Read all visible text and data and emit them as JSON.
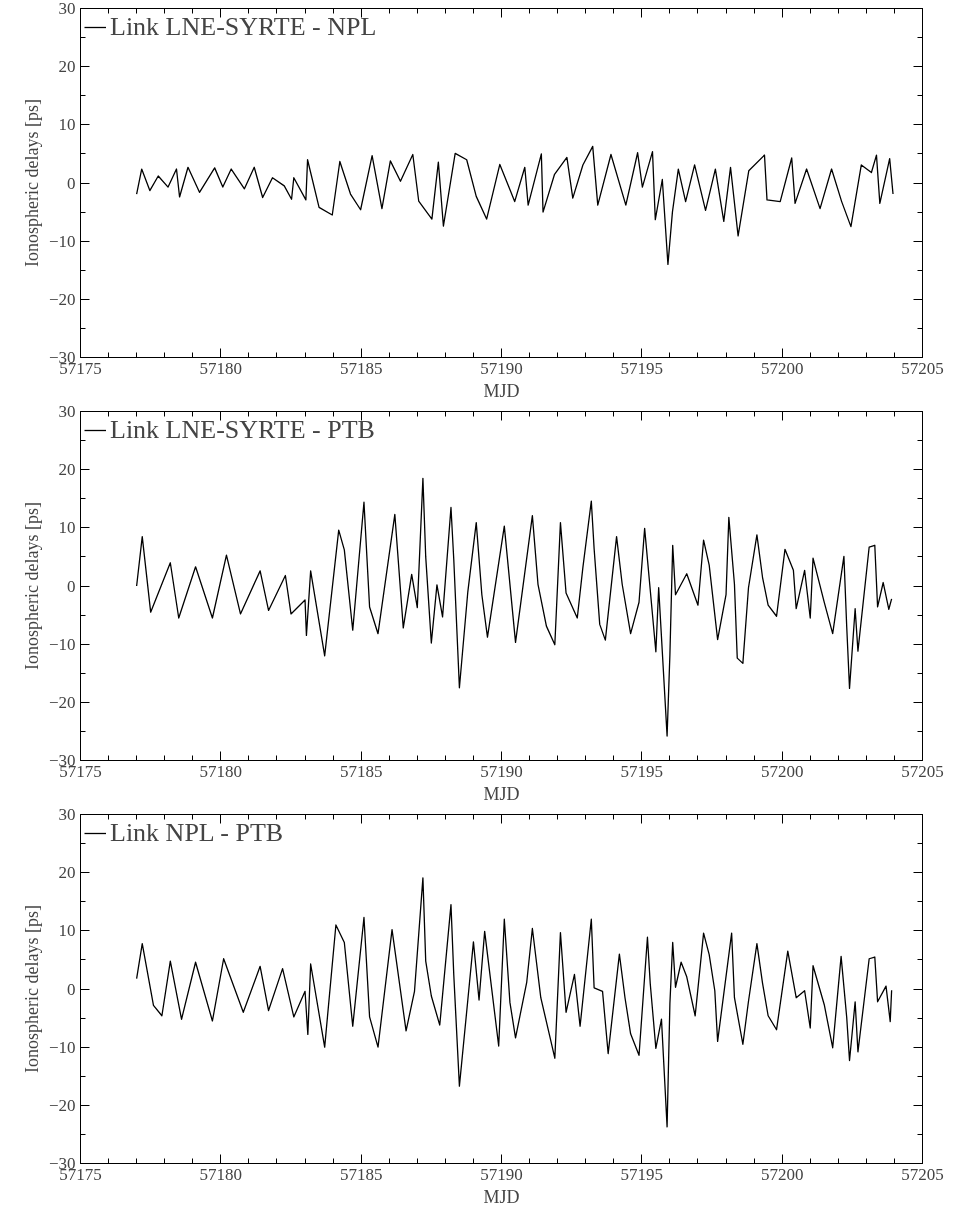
{
  "chart_data": [
    {
      "type": "line",
      "xlabel": "MJD",
      "ylabel": "Ionospheric delays [ps]",
      "legend": "top left",
      "line_style": "solid",
      "marker": "none",
      "xlim": [
        57175,
        57205
      ],
      "ylim": [
        -30,
        30
      ],
      "xticks": [
        57175,
        {
          "value": 57176,
          "label": null
        },
        {
          "value": 57177,
          "label": null
        },
        {
          "value": 57178,
          "label": null
        },
        {
          "value": 57179,
          "label": null
        },
        57180,
        {
          "value": 57181,
          "label": null
        },
        {
          "value": 57182,
          "label": null
        },
        {
          "value": 57183,
          "label": null
        },
        {
          "value": 57184,
          "label": null
        },
        57185,
        {
          "value": 57186,
          "label": null
        },
        {
          "value": 57187,
          "label": null
        },
        {
          "value": 57188,
          "label": null
        },
        {
          "value": 57189,
          "label": null
        },
        57190,
        {
          "value": 57191,
          "label": null
        },
        {
          "value": 57192,
          "label": null
        },
        {
          "value": 57193,
          "label": null
        },
        {
          "value": 57194,
          "label": null
        },
        57195,
        {
          "value": 57196,
          "label": null
        },
        {
          "value": 57197,
          "label": null
        },
        {
          "value": 57198,
          "label": null
        },
        {
          "value": 57199,
          "label": null
        },
        57200,
        {
          "value": 57201,
          "label": null
        },
        {
          "value": 57202,
          "label": null
        },
        {
          "value": 57203,
          "label": null
        },
        {
          "value": 57204,
          "label": null
        },
        57205
      ],
      "yticks": [
        {
          "value": -30,
          "label": "−30"
        },
        {
          "value": -25,
          "label": null
        },
        {
          "value": -20,
          "label": "−20"
        },
        {
          "value": -15,
          "label": null
        },
        {
          "value": -10,
          "label": "−10"
        },
        {
          "value": -5,
          "label": null
        },
        0,
        {
          "value": 5,
          "label": null
        },
        10,
        {
          "value": 15,
          "label": null
        },
        20,
        {
          "value": 25,
          "label": null
        },
        30
      ],
      "series": [
        {
          "name": "Link LNE-SYRTE - NPL",
          "color": "#000000",
          "x": [
            57177.0,
            57177.18,
            57177.47,
            57177.77,
            57178.12,
            57178.42,
            57178.53,
            57178.83,
            57179.24,
            57179.78,
            57180.07,
            57180.37,
            57180.84,
            57181.19,
            57181.49,
            57181.84,
            57182.26,
            57182.52,
            57182.6,
            57183.03,
            57183.09,
            57183.5,
            57183.97,
            57184.24,
            57184.62,
            57184.98,
            57185.39,
            57185.74,
            57186.04,
            57186.4,
            57186.84,
            57187.05,
            57187.52,
            57187.75,
            57187.93,
            57188.35,
            57188.76,
            57189.1,
            57189.47,
            57189.94,
            57190.47,
            57190.83,
            57190.95,
            57191.42,
            57191.48,
            57191.89,
            57192.33,
            57192.54,
            57192.9,
            57193.25,
            57193.43,
            57193.9,
            57194.43,
            57194.85,
            57195.02,
            57195.38,
            57195.48,
            57195.73,
            57195.93,
            57196.09,
            57196.3,
            57196.56,
            57196.88,
            57197.27,
            57197.62,
            57197.92,
            57198.16,
            57198.43,
            57198.81,
            57199.37,
            57199.46,
            57199.93,
            57200.34,
            57200.46,
            57200.87,
            57201.35,
            57201.76,
            57202.12,
            57202.45,
            57202.82,
            57203.18,
            57203.36,
            57203.48,
            57203.83,
            57203.95
          ],
          "values": [
            -1.9,
            2.4,
            -1.3,
            1.2,
            -0.7,
            2.4,
            -2.4,
            2.7,
            -1.6,
            2.6,
            -0.7,
            2.4,
            -1.0,
            2.7,
            -2.5,
            0.9,
            -0.5,
            -2.8,
            0.9,
            -2.9,
            4.0,
            -4.2,
            -5.5,
            3.7,
            -1.9,
            -4.6,
            4.7,
            -4.4,
            3.8,
            0.3,
            4.9,
            -3.1,
            -6.2,
            3.6,
            -7.4,
            5.1,
            4.0,
            -2.3,
            -6.2,
            3.2,
            -3.2,
            2.7,
            -3.8,
            5.0,
            -5.0,
            1.5,
            4.4,
            -2.6,
            3.1,
            6.3,
            -3.8,
            4.9,
            -3.8,
            5.2,
            -0.7,
            5.4,
            -6.3,
            0.6,
            -14.0,
            -5.0,
            2.4,
            -3.2,
            3.1,
            -4.7,
            2.4,
            -6.6,
            2.7,
            -9.1,
            2.1,
            4.8,
            -2.9,
            -3.2,
            4.3,
            -3.5,
            2.4,
            -4.4,
            2.4,
            -3.2,
            -7.5,
            3.1,
            1.8,
            4.8,
            -3.5,
            4.2,
            -1.9
          ]
        }
      ]
    },
    {
      "type": "line",
      "xlabel": "MJD",
      "ylabel": "Ionospheric delays [ps]",
      "legend": "top left",
      "line_style": "solid",
      "marker": "none",
      "xlim": [
        57175,
        57205
      ],
      "ylim": [
        -30,
        30
      ],
      "xticks": [
        57175,
        {
          "value": 57176,
          "label": null
        },
        {
          "value": 57177,
          "label": null
        },
        {
          "value": 57178,
          "label": null
        },
        {
          "value": 57179,
          "label": null
        },
        57180,
        {
          "value": 57181,
          "label": null
        },
        {
          "value": 57182,
          "label": null
        },
        {
          "value": 57183,
          "label": null
        },
        {
          "value": 57184,
          "label": null
        },
        57185,
        {
          "value": 57186,
          "label": null
        },
        {
          "value": 57187,
          "label": null
        },
        {
          "value": 57188,
          "label": null
        },
        {
          "value": 57189,
          "label": null
        },
        57190,
        {
          "value": 57191,
          "label": null
        },
        {
          "value": 57192,
          "label": null
        },
        {
          "value": 57193,
          "label": null
        },
        {
          "value": 57194,
          "label": null
        },
        57195,
        {
          "value": 57196,
          "label": null
        },
        {
          "value": 57197,
          "label": null
        },
        {
          "value": 57198,
          "label": null
        },
        {
          "value": 57199,
          "label": null
        },
        57200,
        {
          "value": 57201,
          "label": null
        },
        {
          "value": 57202,
          "label": null
        },
        {
          "value": 57203,
          "label": null
        },
        {
          "value": 57204,
          "label": null
        },
        57205
      ],
      "yticks": [
        {
          "value": -30,
          "label": "−30"
        },
        {
          "value": -25,
          "label": null
        },
        {
          "value": -20,
          "label": "−20"
        },
        {
          "value": -15,
          "label": null
        },
        {
          "value": -10,
          "label": "−10"
        },
        {
          "value": -5,
          "label": null
        },
        0,
        {
          "value": 5,
          "label": null
        },
        10,
        {
          "value": 15,
          "label": null
        },
        20,
        {
          "value": 25,
          "label": null
        },
        30
      ],
      "series": [
        {
          "name": "Link LNE-SYRTE - PTB",
          "color": "#000000",
          "x": [
            57177.0,
            57177.2,
            57177.5,
            57178.2,
            57178.5,
            57179.1,
            57179.7,
            57180.2,
            57180.7,
            57181.4,
            57181.7,
            57182.3,
            57182.5,
            57183.0,
            57183.05,
            57183.2,
            57183.7,
            57184.2,
            57184.4,
            57184.7,
            57185.1,
            57185.3,
            57185.6,
            57186.2,
            57186.5,
            57186.8,
            57187.0,
            57187.2,
            57187.3,
            57187.5,
            57187.7,
            57187.9,
            57188.2,
            57188.3,
            57188.5,
            57188.8,
            57189.1,
            57189.3,
            57189.5,
            57190.1,
            57190.5,
            57191.1,
            57191.3,
            57191.6,
            57191.9,
            57192.1,
            57192.3,
            57192.7,
            57192.9,
            57193.2,
            57193.3,
            57193.5,
            57193.7,
            57194.1,
            57194.3,
            57194.6,
            57194.9,
            57195.1,
            57195.5,
            57195.6,
            57195.9,
            57196.0,
            57196.1,
            57196.2,
            57196.6,
            57197.0,
            57197.2,
            57197.4,
            57197.7,
            57198.0,
            57198.1,
            57198.3,
            57198.4,
            57198.6,
            57198.8,
            57199.1,
            57199.3,
            57199.5,
            57199.8,
            57200.1,
            57200.4,
            57200.5,
            57200.8,
            57201.0,
            57201.1,
            57201.5,
            57201.8,
            57202.2,
            57202.3,
            57202.4,
            57202.6,
            57202.7,
            57203.1,
            57203.3,
            57203.4,
            57203.6,
            57203.8,
            57203.9
          ],
          "values": [
            0,
            8.5,
            -4.5,
            4,
            -5.5,
            3.3,
            -5.5,
            5.3,
            -4.8,
            2.6,
            -4.2,
            1.8,
            -4.8,
            -2.4,
            -8.5,
            2.6,
            -12,
            9.6,
            6.2,
            -7.6,
            14.4,
            -3.6,
            -8.2,
            12.3,
            -7.2,
            2,
            -3.7,
            18.5,
            5,
            -9.8,
            0.2,
            -5.3,
            13.5,
            4.5,
            -17.5,
            -1,
            10.9,
            -1.5,
            -8.8,
            10.3,
            -9.7,
            12.1,
            0.3,
            -6.9,
            -10.1,
            10.9,
            -1.2,
            -5.5,
            3.2,
            14.6,
            6.4,
            -6.6,
            -9.3,
            8.5,
            0.3,
            -8.2,
            -2.8,
            9.9,
            -11.3,
            -0.3,
            -25.8,
            -11.8,
            7,
            -1.5,
            2.1,
            -3.3,
            7.9,
            3.6,
            -9.2,
            -1.5,
            11.8,
            0.3,
            -12.4,
            -13.3,
            -0.3,
            8.8,
            1.5,
            -3.3,
            -5.2,
            6.3,
            2.7,
            -3.9,
            2.7,
            -5.5,
            4.8,
            -2.8,
            -8.2,
            5.1,
            -7,
            -17.6,
            -3.9,
            -11.2,
            6.7,
            7,
            -3.6,
            0.6,
            -4,
            -2.2
          ]
        }
      ]
    },
    {
      "type": "line",
      "xlabel": "MJD",
      "ylabel": "Ionospheric delays [ps]",
      "legend": "top left",
      "line_style": "solid",
      "marker": "none",
      "xlim": [
        57175,
        57205
      ],
      "ylim": [
        -30,
        30
      ],
      "xticks": [
        57175,
        {
          "value": 57176,
          "label": null
        },
        {
          "value": 57177,
          "label": null
        },
        {
          "value": 57178,
          "label": null
        },
        {
          "value": 57179,
          "label": null
        },
        57180,
        {
          "value": 57181,
          "label": null
        },
        {
          "value": 57182,
          "label": null
        },
        {
          "value": 57183,
          "label": null
        },
        {
          "value": 57184,
          "label": null
        },
        57185,
        {
          "value": 57186,
          "label": null
        },
        {
          "value": 57187,
          "label": null
        },
        {
          "value": 57188,
          "label": null
        },
        {
          "value": 57189,
          "label": null
        },
        57190,
        {
          "value": 57191,
          "label": null
        },
        {
          "value": 57192,
          "label": null
        },
        {
          "value": 57193,
          "label": null
        },
        {
          "value": 57194,
          "label": null
        },
        57195,
        {
          "value": 57196,
          "label": null
        },
        {
          "value": 57197,
          "label": null
        },
        {
          "value": 57198,
          "label": null
        },
        {
          "value": 57199,
          "label": null
        },
        57200,
        {
          "value": 57201,
          "label": null
        },
        {
          "value": 57202,
          "label": null
        },
        {
          "value": 57203,
          "label": null
        },
        {
          "value": 57204,
          "label": null
        },
        57205
      ],
      "yticks": [
        {
          "value": -30,
          "label": "−30"
        },
        {
          "value": -25,
          "label": null
        },
        {
          "value": -20,
          "label": "−20"
        },
        {
          "value": -15,
          "label": null
        },
        {
          "value": -10,
          "label": "−10"
        },
        {
          "value": -5,
          "label": null
        },
        0,
        {
          "value": 5,
          "label": null
        },
        10,
        {
          "value": 15,
          "label": null
        },
        20,
        {
          "value": 25,
          "label": null
        },
        30
      ],
      "series": [
        {
          "name": "Link NPL - PTB",
          "color": "#000000",
          "x": [
            57177.0,
            57177.2,
            57177.6,
            57177.9,
            57178.2,
            57178.6,
            57179.1,
            57179.7,
            57180.1,
            57180.8,
            57181.4,
            57181.7,
            57182.2,
            57182.6,
            57183.0,
            57183.1,
            57183.2,
            57183.7,
            57184.1,
            57184.4,
            57184.7,
            57185.1,
            57185.3,
            57185.6,
            57186.1,
            57186.6,
            57186.9,
            57187.2,
            57187.3,
            57187.5,
            57187.8,
            57188.2,
            57188.3,
            57188.5,
            57188.8,
            57189.0,
            57189.2,
            57189.4,
            57189.9,
            57190.1,
            57190.3,
            57190.5,
            57190.9,
            57191.1,
            57191.4,
            57191.7,
            57191.9,
            57192.1,
            57192.3,
            57192.6,
            57192.8,
            57193.2,
            57193.3,
            57193.6,
            57193.8,
            57194.2,
            57194.4,
            57194.6,
            57194.9,
            57195.2,
            57195.3,
            57195.5,
            57195.7,
            57195.9,
            57196.0,
            57196.1,
            57196.2,
            57196.4,
            57196.6,
            57196.9,
            57197.2,
            57197.4,
            57197.6,
            57197.7,
            57198.2,
            57198.3,
            57198.6,
            57198.8,
            57199.1,
            57199.3,
            57199.5,
            57199.8,
            57200.2,
            57200.5,
            57200.8,
            57201.0,
            57201.1,
            57201.5,
            57201.8,
            57202.1,
            57202.3,
            57202.4,
            57202.6,
            57202.7,
            57203.1,
            57203.3,
            57203.4,
            57203.7,
            57203.85,
            57203.9
          ],
          "values": [
            1.8,
            7.8,
            -2.8,
            -4.6,
            4.8,
            -5.2,
            4.6,
            -5.5,
            5.2,
            -4,
            3.9,
            -3.7,
            3.5,
            -4.8,
            -0.4,
            -7.8,
            4.3,
            -10,
            11,
            8,
            -6.4,
            12.3,
            -4.8,
            -10,
            10.2,
            -7.2,
            -0.4,
            19.1,
            4.8,
            -1.2,
            -6.2,
            14.5,
            2.4,
            -16.7,
            -1.9,
            8.1,
            -1.9,
            9.9,
            -9.8,
            12,
            -2.3,
            -8.4,
            1.2,
            10.4,
            -1.5,
            -7.7,
            -11.9,
            9.7,
            -4,
            2.5,
            -6.4,
            12,
            0.2,
            -0.4,
            -11.1,
            6,
            -1.5,
            -7.7,
            -11.4,
            8.9,
            0.9,
            -10.2,
            -5.2,
            -23.7,
            -2.5,
            8,
            0.3,
            4.6,
            2.1,
            -4.6,
            9.6,
            5.9,
            -0.3,
            -9,
            9.6,
            -1.5,
            -9.5,
            -2.1,
            7.8,
            1,
            -4.6,
            -7,
            6.5,
            -1.5,
            -0.3,
            -6.7,
            4,
            -2.7,
            -10.1,
            5.6,
            -4.9,
            -12.3,
            -2.2,
            -10.8,
            5.2,
            5.5,
            -2.2,
            0.5,
            -5.6,
            -0.2
          ]
        }
      ]
    }
  ]
}
